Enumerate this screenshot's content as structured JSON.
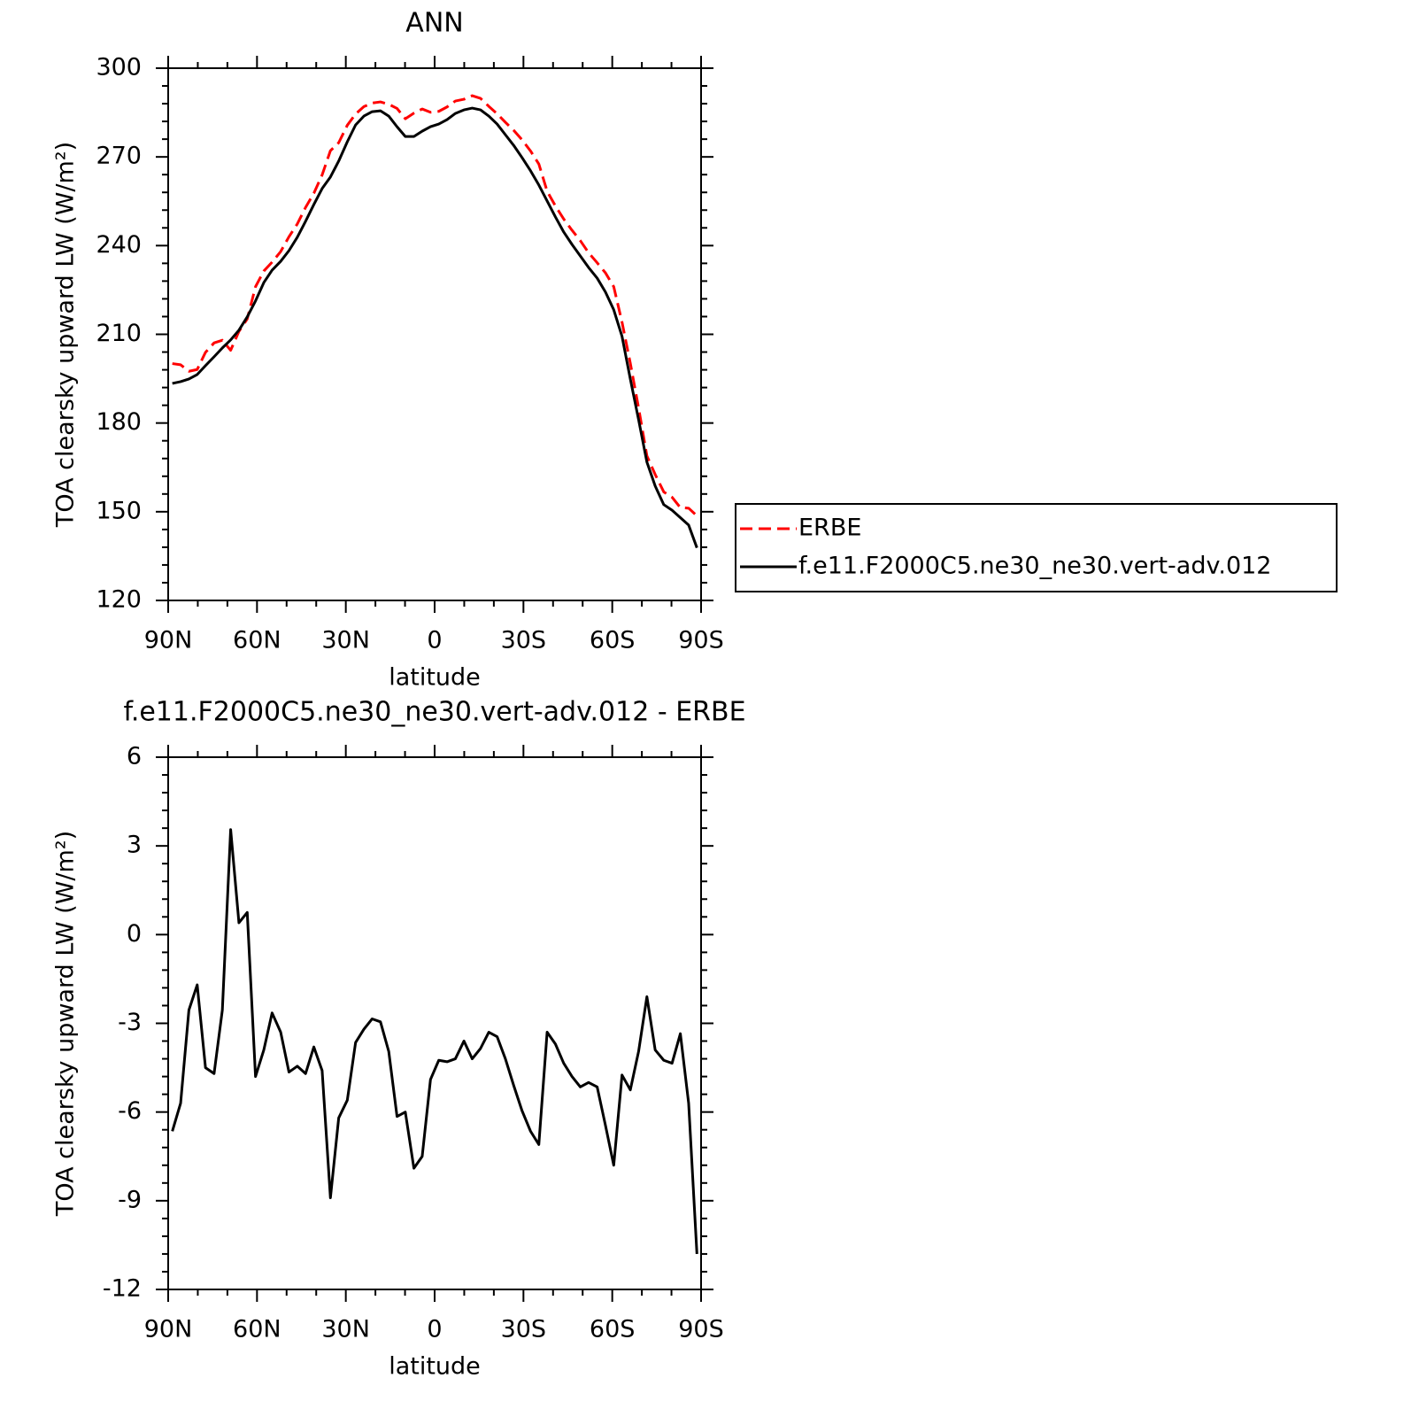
{
  "chart_data": [
    {
      "type": "line",
      "title": "ANN",
      "x_label": "latitude",
      "y_label": "TOA clearsky upward LW (W/m²)",
      "x": [
        88.6,
        85.8,
        83.0,
        80.2,
        77.4,
        74.5,
        71.7,
        68.9,
        66.1,
        63.3,
        60.5,
        57.7,
        54.9,
        52.0,
        49.2,
        46.4,
        43.6,
        40.8,
        38.0,
        35.2,
        32.4,
        29.5,
        26.7,
        23.9,
        21.1,
        18.3,
        15.5,
        12.7,
        9.9,
        7.0,
        4.2,
        1.4,
        -1.4,
        -4.2,
        -7.0,
        -9.9,
        -12.7,
        -15.5,
        -18.3,
        -21.1,
        -23.9,
        -26.7,
        -29.5,
        -32.4,
        -35.2,
        -38.0,
        -40.8,
        -43.6,
        -46.4,
        -49.2,
        -52.0,
        -54.9,
        -57.7,
        -60.5,
        -63.3,
        -66.1,
        -68.9,
        -71.7,
        -74.5,
        -77.4,
        -80.2,
        -83.0,
        -85.8,
        -88.6
      ],
      "series": [
        {
          "name": "ERBE",
          "color": "#ff0000",
          "dashed": true,
          "values": [
            200.1,
            199.7,
            197.5,
            198.1,
            203.9,
            207.1,
            208.0,
            204.6,
            211.0,
            215.2,
            226.1,
            231.4,
            234.4,
            238.0,
            243.0,
            247.3,
            252.9,
            257.7,
            263.9,
            272.1,
            274.8,
            280.7,
            284.5,
            287.0,
            288.2,
            288.6,
            287.8,
            286.4,
            282.9,
            284.8,
            286.2,
            285.1,
            285.4,
            286.9,
            288.9,
            289.5,
            290.7,
            289.8,
            287.1,
            284.6,
            281.7,
            279.0,
            275.8,
            272.0,
            267.6,
            258.4,
            253.4,
            249.0,
            245.2,
            241.7,
            237.6,
            234.2,
            230.8,
            226.1,
            214.1,
            200.2,
            185.1,
            168.9,
            162.6,
            156.7,
            154.9,
            151.4,
            151.2,
            148.6
          ]
        },
        {
          "name": "f.e11.F2000C5.ne30_ne30.vert-adv.012",
          "color": "#000000",
          "dashed": false,
          "values": [
            193.4,
            194.0,
            194.9,
            196.4,
            199.4,
            202.4,
            205.4,
            208.1,
            211.4,
            215.9,
            221.3,
            227.5,
            231.7,
            234.7,
            238.3,
            242.8,
            248.2,
            253.9,
            259.3,
            263.2,
            268.6,
            275.1,
            280.8,
            283.8,
            285.3,
            285.6,
            283.8,
            280.2,
            276.9,
            276.9,
            278.7,
            280.2,
            281.1,
            282.6,
            284.7,
            285.9,
            286.5,
            285.9,
            283.8,
            281.1,
            277.5,
            273.9,
            269.8,
            265.3,
            260.5,
            255.1,
            249.7,
            244.6,
            240.4,
            236.5,
            232.6,
            229.0,
            224.3,
            218.3,
            209.3,
            194.9,
            181.1,
            166.8,
            158.7,
            152.4,
            150.5,
            148.0,
            145.5,
            137.8
          ]
        }
      ],
      "xlim": [
        90,
        -90
      ],
      "xticks": [
        {
          "value": 90,
          "label": "90N"
        },
        {
          "value": 60,
          "label": "60N"
        },
        {
          "value": 30,
          "label": "30N"
        },
        0,
        {
          "value": -30,
          "label": "30S"
        },
        {
          "value": -60,
          "label": "60S"
        },
        {
          "value": -90,
          "label": "90S"
        }
      ],
      "ylim": [
        120,
        300
      ],
      "yticks": [
        120,
        150,
        180,
        210,
        240,
        270,
        300
      ],
      "legend": "outside-right"
    },
    {
      "type": "line",
      "title": "f.e11.F2000C5.ne30_ne30.vert-adv.012 - ERBE",
      "x_label": "latitude",
      "y_label": "TOA clearsky upward LW (W/m²)",
      "x": [
        88.6,
        85.8,
        83.0,
        80.2,
        77.4,
        74.5,
        71.7,
        68.9,
        66.1,
        63.3,
        60.5,
        57.7,
        54.9,
        52.0,
        49.2,
        46.4,
        43.6,
        40.8,
        38.0,
        35.2,
        32.4,
        29.5,
        26.7,
        23.9,
        21.1,
        18.3,
        15.5,
        12.7,
        9.9,
        7.0,
        4.2,
        1.4,
        -1.4,
        -4.2,
        -7.0,
        -9.9,
        -12.7,
        -15.5,
        -18.3,
        -21.1,
        -23.9,
        -26.7,
        -29.5,
        -32.4,
        -35.2,
        -38.0,
        -40.8,
        -43.6,
        -46.4,
        -49.2,
        -52.0,
        -54.9,
        -57.7,
        -60.5,
        -63.3,
        -66.1,
        -68.9,
        -71.7,
        -74.5,
        -77.4,
        -80.2,
        -83.0,
        -85.8,
        -88.6
      ],
      "values": [
        -6.65,
        -5.7,
        -2.55,
        -1.7,
        -4.5,
        -4.7,
        -2.55,
        3.55,
        0.4,
        0.75,
        -4.8,
        -3.9,
        -2.65,
        -3.3,
        -4.65,
        -4.45,
        -4.7,
        -3.8,
        -4.6,
        -8.9,
        -6.2,
        -5.6,
        -3.65,
        -3.2,
        -2.85,
        -2.95,
        -3.95,
        -6.15,
        -6.0,
        -7.9,
        -7.5,
        -4.9,
        -4.25,
        -4.3,
        -4.2,
        -3.6,
        -4.2,
        -3.85,
        -3.3,
        -3.45,
        -4.2,
        -5.1,
        -5.95,
        -6.65,
        -7.1,
        -3.3,
        -3.7,
        -4.35,
        -4.8,
        -5.15,
        -5.0,
        -5.15,
        -6.45,
        -7.8,
        -4.75,
        -5.25,
        -3.95,
        -2.1,
        -3.9,
        -4.25,
        -4.35,
        -3.35,
        -5.7,
        -10.8
      ],
      "color": "#000000",
      "xlim": [
        90,
        -90
      ],
      "xticks": [
        {
          "value": 90,
          "label": "90N"
        },
        {
          "value": 60,
          "label": "60N"
        },
        {
          "value": 30,
          "label": "30N"
        },
        0,
        {
          "value": -30,
          "label": "30S"
        },
        {
          "value": -60,
          "label": "60S"
        },
        {
          "value": -90,
          "label": "90S"
        }
      ],
      "ylim": [
        -12,
        6
      ],
      "yticks": [
        -12,
        -9,
        -6,
        -3,
        0,
        3,
        6
      ]
    }
  ]
}
